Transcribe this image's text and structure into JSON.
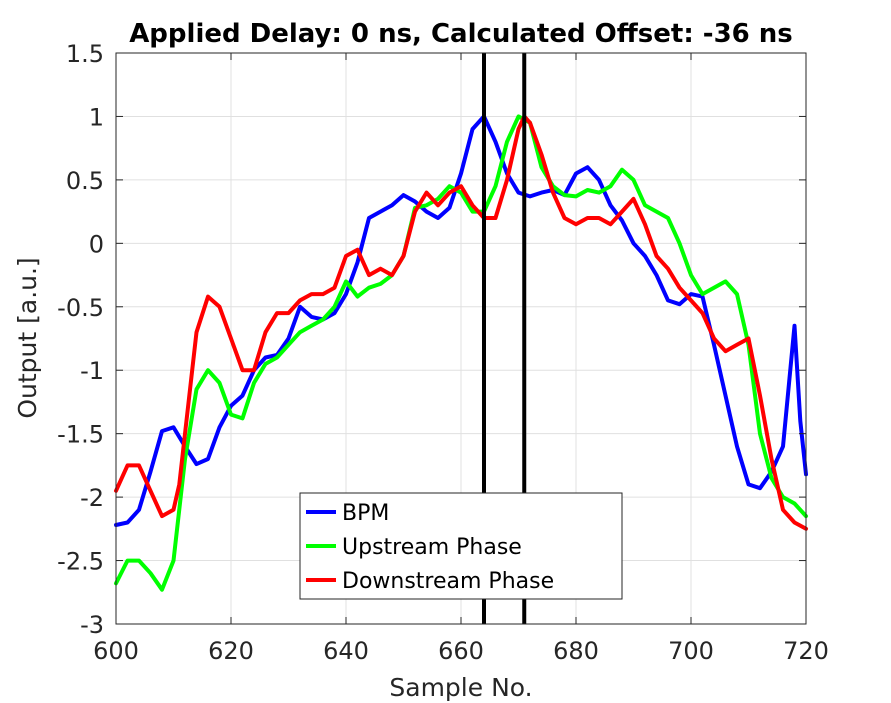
{
  "chart_data": {
    "type": "line",
    "title": "Applied Delay: 0 ns, Calculated Offset: -36 ns",
    "xlabel": "Sample No.",
    "ylabel": "Output [a.u.]",
    "xlim": [
      600,
      720
    ],
    "ylim": [
      -3,
      1.5
    ],
    "xticks": [
      600,
      620,
      640,
      660,
      680,
      700,
      720
    ],
    "yticks": [
      -3,
      -2.5,
      -2,
      -1.5,
      -1,
      -0.5,
      0,
      0.5,
      1,
      1.5
    ],
    "grid": true,
    "legend_position": "bottom-center",
    "vlines": [
      664,
      671
    ],
    "vline_color": "#000000",
    "series": [
      {
        "name": "BPM",
        "color": "#0000ff",
        "x": [
          600,
          602,
          604,
          606,
          608,
          610,
          612,
          614,
          616,
          618,
          620,
          622,
          624,
          626,
          628,
          630,
          632,
          634,
          636,
          638,
          640,
          642,
          644,
          646,
          648,
          650,
          652,
          654,
          656,
          658,
          660,
          662,
          664,
          666,
          668,
          670,
          672,
          674,
          676,
          678,
          680,
          682,
          684,
          686,
          688,
          690,
          692,
          694,
          696,
          698,
          700,
          702,
          704,
          706,
          708,
          710,
          712,
          714,
          716,
          718,
          719,
          720
        ],
        "y": [
          -2.22,
          -2.2,
          -2.1,
          -1.8,
          -1.48,
          -1.45,
          -1.6,
          -1.74,
          -1.7,
          -1.45,
          -1.28,
          -1.2,
          -1.0,
          -0.9,
          -0.88,
          -0.75,
          -0.5,
          -0.58,
          -0.6,
          -0.55,
          -0.4,
          -0.15,
          0.2,
          0.25,
          0.3,
          0.38,
          0.33,
          0.25,
          0.2,
          0.28,
          0.55,
          0.9,
          1.0,
          0.8,
          0.55,
          0.4,
          0.37,
          0.4,
          0.42,
          0.38,
          0.55,
          0.6,
          0.5,
          0.3,
          0.18,
          0.0,
          -0.1,
          -0.25,
          -0.45,
          -0.48,
          -0.4,
          -0.42,
          -0.8,
          -1.2,
          -1.6,
          -1.9,
          -1.93,
          -1.8,
          -1.6,
          -0.65,
          -1.4,
          -1.82
        ]
      },
      {
        "name": "Upstream Phase",
        "color": "#00ff00",
        "x": [
          600,
          602,
          604,
          606,
          608,
          610,
          612,
          614,
          616,
          618,
          620,
          622,
          624,
          626,
          628,
          630,
          632,
          634,
          636,
          638,
          640,
          642,
          644,
          646,
          648,
          650,
          652,
          654,
          656,
          658,
          660,
          662,
          664,
          666,
          668,
          670,
          672,
          674,
          676,
          678,
          680,
          682,
          684,
          686,
          688,
          690,
          692,
          694,
          696,
          698,
          700,
          702,
          704,
          706,
          708,
          710,
          712,
          714,
          716,
          718,
          720
        ],
        "y": [
          -2.68,
          -2.5,
          -2.5,
          -2.6,
          -2.73,
          -2.5,
          -1.7,
          -1.15,
          -1.0,
          -1.1,
          -1.35,
          -1.38,
          -1.1,
          -0.95,
          -0.9,
          -0.8,
          -0.7,
          -0.65,
          -0.6,
          -0.5,
          -0.3,
          -0.42,
          -0.35,
          -0.32,
          -0.25,
          -0.1,
          0.28,
          0.3,
          0.35,
          0.45,
          0.4,
          0.25,
          0.25,
          0.45,
          0.8,
          1.0,
          0.95,
          0.6,
          0.45,
          0.38,
          0.37,
          0.42,
          0.4,
          0.45,
          0.58,
          0.5,
          0.3,
          0.25,
          0.2,
          0.0,
          -0.25,
          -0.4,
          -0.35,
          -0.3,
          -0.4,
          -0.8,
          -1.5,
          -1.85,
          -2.0,
          -2.05,
          -2.15
        ]
      },
      {
        "name": "Downstream Phase",
        "color": "#ff0000",
        "x": [
          600,
          602,
          604,
          606,
          608,
          610,
          611,
          612,
          614,
          616,
          618,
          620,
          622,
          624,
          626,
          628,
          630,
          632,
          634,
          636,
          638,
          640,
          642,
          644,
          646,
          648,
          650,
          652,
          654,
          656,
          658,
          660,
          662,
          664,
          666,
          668,
          670,
          671,
          672,
          674,
          676,
          678,
          680,
          682,
          684,
          686,
          688,
          690,
          692,
          694,
          696,
          698,
          700,
          702,
          704,
          706,
          708,
          710,
          712,
          714,
          716,
          718,
          720
        ],
        "y": [
          -1.95,
          -1.75,
          -1.75,
          -1.95,
          -2.15,
          -2.1,
          -1.9,
          -1.5,
          -0.7,
          -0.42,
          -0.5,
          -0.75,
          -1.0,
          -1.0,
          -0.7,
          -0.55,
          -0.55,
          -0.45,
          -0.4,
          -0.4,
          -0.35,
          -0.1,
          -0.05,
          -0.25,
          -0.2,
          -0.25,
          -0.1,
          0.25,
          0.4,
          0.3,
          0.4,
          0.45,
          0.3,
          0.2,
          0.2,
          0.5,
          0.9,
          1.0,
          0.95,
          0.7,
          0.4,
          0.2,
          0.15,
          0.2,
          0.2,
          0.15,
          0.25,
          0.35,
          0.15,
          -0.1,
          -0.2,
          -0.35,
          -0.45,
          -0.55,
          -0.75,
          -0.85,
          -0.8,
          -0.75,
          -1.2,
          -1.7,
          -2.1,
          -2.2,
          -2.25
        ]
      }
    ]
  }
}
